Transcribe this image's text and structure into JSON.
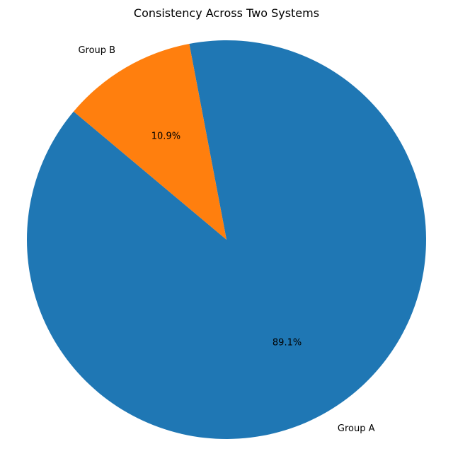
{
  "chart_data": {
    "type": "pie",
    "title": "Consistency Across Two Systems",
    "categories": [
      "Group A",
      "Group B"
    ],
    "values": [
      89.1,
      10.9
    ],
    "value_labels": [
      "89.1%",
      "10.9%"
    ],
    "colors": [
      "#1f77b4",
      "#ff7f0e"
    ],
    "start_angle_deg": 140,
    "direction": "counterclockwise",
    "legend": "none"
  }
}
